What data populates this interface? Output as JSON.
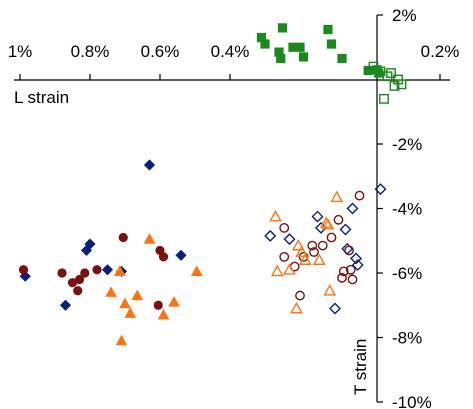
{
  "chart_data": {
    "type": "scatter",
    "xlabel": "L strain",
    "ylabel": "T strain",
    "xlim": [
      -1.0,
      0.2
    ],
    "ylim": [
      -10,
      2
    ],
    "x_reversed": true,
    "x_ticks": [
      {
        "value": -1.0,
        "label": "1%"
      },
      {
        "value": -0.8,
        "label": "0.8%"
      },
      {
        "value": -0.6,
        "label": "0.6%"
      },
      {
        "value": -0.4,
        "label": "0.4%"
      },
      {
        "value": 0.2,
        "label": "0.2%"
      }
    ],
    "y_ticks": [
      {
        "value": 2,
        "label": "2%"
      },
      {
        "value": -2,
        "label": "-2%"
      },
      {
        "value": -4,
        "label": "-4%"
      },
      {
        "value": -6,
        "label": "-6%"
      },
      {
        "value": -8,
        "label": "-8%"
      },
      {
        "value": -10,
        "label": "-10%"
      }
    ],
    "grid": false,
    "legend": "none",
    "series": [
      {
        "marker": "square",
        "filled": true,
        "color": "#1a8a1a",
        "points": [
          [
            -0.31,
            1.3
          ],
          [
            -0.25,
            1.6
          ],
          [
            -0.3,
            1.1
          ],
          [
            -0.22,
            1.0
          ],
          [
            -0.26,
            0.85
          ],
          [
            -0.255,
            0.65
          ],
          [
            -0.19,
            0.7
          ],
          [
            -0.2,
            1.0
          ],
          [
            -0.12,
            1.55
          ],
          [
            -0.11,
            1.1
          ],
          [
            -0.08,
            0.65
          ],
          [
            -0.005,
            0.28
          ],
          [
            0.02,
            0.3
          ],
          [
            0.025,
            0.2
          ]
        ]
      },
      {
        "marker": "square",
        "filled": false,
        "color": "#1a8a1a",
        "points": [
          [
            0.01,
            0.4
          ],
          [
            0.03,
            0.25
          ],
          [
            0.06,
            0.2
          ],
          [
            0.08,
            0.0
          ],
          [
            0.09,
            -0.15
          ],
          [
            0.07,
            -0.2
          ],
          [
            0.05,
            0.1
          ],
          [
            0.04,
            -0.6
          ]
        ]
      },
      {
        "marker": "diamond",
        "filled": true,
        "color": "#0a1f7a",
        "points": [
          [
            -0.63,
            -2.65
          ],
          [
            -0.8,
            -5.1
          ],
          [
            -0.81,
            -5.3
          ],
          [
            -0.75,
            -5.9
          ],
          [
            -0.71,
            -5.95
          ],
          [
            -0.54,
            -5.45
          ],
          [
            -0.87,
            -7.0
          ],
          [
            -0.985,
            -6.1
          ]
        ]
      },
      {
        "marker": "diamond",
        "filled": false,
        "color": "#0a1f7a",
        "points": [
          [
            -0.285,
            -4.85
          ],
          [
            -0.23,
            -4.95
          ],
          [
            -0.15,
            -4.25
          ],
          [
            -0.14,
            -4.6
          ],
          [
            -0.07,
            -4.65
          ],
          [
            -0.065,
            -5.25
          ],
          [
            -0.05,
            -4.0
          ],
          [
            -0.04,
            -5.55
          ],
          [
            -0.035,
            -5.75
          ],
          [
            -0.1,
            -7.1
          ],
          [
            0.03,
            -3.4
          ]
        ]
      },
      {
        "marker": "circle",
        "filled": true,
        "color": "#7a1010",
        "points": [
          [
            -0.99,
            -5.9
          ],
          [
            -0.88,
            -6.0
          ],
          [
            -0.85,
            -6.3
          ],
          [
            -0.83,
            -6.2
          ],
          [
            -0.835,
            -6.55
          ],
          [
            -0.815,
            -6.0
          ],
          [
            -0.78,
            -5.9
          ],
          [
            -0.705,
            -4.9
          ],
          [
            -0.6,
            -5.3
          ],
          [
            -0.59,
            -5.5
          ],
          [
            -0.605,
            -7.0
          ]
        ]
      },
      {
        "marker": "circle",
        "filled": false,
        "color": "#7a1010",
        "points": [
          [
            -0.245,
            -4.6
          ],
          [
            -0.245,
            -5.5
          ],
          [
            -0.215,
            -5.8
          ],
          [
            -0.19,
            -5.5
          ],
          [
            -0.165,
            -5.15
          ],
          [
            -0.16,
            -5.35
          ],
          [
            -0.135,
            -5.15
          ],
          [
            -0.11,
            -4.9
          ],
          [
            -0.09,
            -4.35
          ],
          [
            -0.06,
            -5.3
          ],
          [
            -0.075,
            -5.95
          ],
          [
            -0.08,
            -6.15
          ],
          [
            -0.055,
            -5.9
          ],
          [
            -0.05,
            -6.2
          ],
          [
            -0.03,
            -3.6
          ],
          [
            -0.2,
            -6.7
          ]
        ]
      },
      {
        "marker": "triangle",
        "filled": true,
        "color": "#ff7410",
        "points": [
          [
            -0.63,
            -4.95
          ],
          [
            -0.715,
            -5.95
          ],
          [
            -0.74,
            -6.6
          ],
          [
            -0.7,
            -6.95
          ],
          [
            -0.685,
            -7.25
          ],
          [
            -0.665,
            -6.7
          ],
          [
            -0.59,
            -7.3
          ],
          [
            -0.56,
            -6.9
          ],
          [
            -0.495,
            -5.95
          ],
          [
            -0.71,
            -8.1
          ]
        ]
      },
      {
        "marker": "triangle",
        "filled": false,
        "color": "#ff7410",
        "points": [
          [
            -0.27,
            -4.25
          ],
          [
            -0.265,
            -5.95
          ],
          [
            -0.23,
            -5.9
          ],
          [
            -0.205,
            -5.15
          ],
          [
            -0.195,
            -5.35
          ],
          [
            -0.185,
            -5.6
          ],
          [
            -0.145,
            -5.6
          ],
          [
            -0.12,
            -4.5
          ],
          [
            -0.125,
            -4.45
          ],
          [
            -0.115,
            -6.55
          ],
          [
            -0.095,
            -3.65
          ],
          [
            -0.21,
            -7.1
          ]
        ]
      }
    ]
  }
}
